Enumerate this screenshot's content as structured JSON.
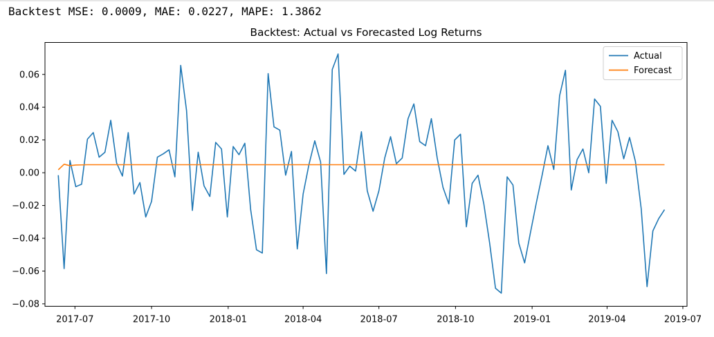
{
  "output": {
    "text": "Backtest MSE: 0.0009, MAE: 0.0227, MAPE: 1.3862"
  },
  "chart_data": {
    "type": "line",
    "title": "Backtest: Actual vs Forecasted Log Returns",
    "xlabel": "",
    "ylabel": "",
    "xlim": [
      "2017-05-26",
      "2019-07-06"
    ],
    "ylim": [
      -0.0815,
      0.0795
    ],
    "x_ticks": [
      "2017-07",
      "2017-10",
      "2018-01",
      "2018-04",
      "2018-07",
      "2018-10",
      "2019-01",
      "2019-04",
      "2019-07"
    ],
    "x_tick_dates": [
      "2017-07-01",
      "2017-10-01",
      "2018-01-01",
      "2018-04-01",
      "2018-07-01",
      "2018-10-01",
      "2019-01-01",
      "2019-04-01",
      "2019-07-01"
    ],
    "y_ticks": [
      -0.08,
      -0.06,
      -0.04,
      -0.02,
      0.0,
      0.02,
      0.04,
      0.06
    ],
    "y_tick_labels": [
      "−0.08",
      "−0.06",
      "−0.04",
      "−0.02",
      "0.00",
      "0.02",
      "0.04",
      "0.06"
    ],
    "legend_position": "top-right",
    "x": [
      "2017-06-11",
      "2017-06-18",
      "2017-06-25",
      "2017-07-02",
      "2017-07-09",
      "2017-07-16",
      "2017-07-23",
      "2017-07-30",
      "2017-08-06",
      "2017-08-13",
      "2017-08-20",
      "2017-08-27",
      "2017-09-03",
      "2017-09-10",
      "2017-09-17",
      "2017-09-24",
      "2017-10-01",
      "2017-10-08",
      "2017-10-15",
      "2017-10-22",
      "2017-10-29",
      "2017-11-05",
      "2017-11-12",
      "2017-11-19",
      "2017-11-26",
      "2017-12-03",
      "2017-12-10",
      "2017-12-17",
      "2017-12-24",
      "2017-12-31",
      "2018-01-07",
      "2018-01-14",
      "2018-01-21",
      "2018-01-28",
      "2018-02-04",
      "2018-02-11",
      "2018-02-18",
      "2018-02-25",
      "2018-03-04",
      "2018-03-11",
      "2018-03-18",
      "2018-03-25",
      "2018-04-01",
      "2018-04-08",
      "2018-04-15",
      "2018-04-22",
      "2018-04-29",
      "2018-05-06",
      "2018-05-13",
      "2018-05-20",
      "2018-05-27",
      "2018-06-03",
      "2018-06-10",
      "2018-06-17",
      "2018-06-24",
      "2018-07-01",
      "2018-07-08",
      "2018-07-15",
      "2018-07-22",
      "2018-07-29",
      "2018-08-05",
      "2018-08-12",
      "2018-08-19",
      "2018-08-26",
      "2018-09-02",
      "2018-09-09",
      "2018-09-16",
      "2018-09-23",
      "2018-09-30",
      "2018-10-07",
      "2018-10-14",
      "2018-10-21",
      "2018-10-28",
      "2018-11-04",
      "2018-11-11",
      "2018-11-18",
      "2018-11-25",
      "2018-12-02",
      "2018-12-09",
      "2018-12-16",
      "2018-12-23",
      "2018-12-30",
      "2019-01-06",
      "2019-01-13",
      "2019-01-20",
      "2019-01-27",
      "2019-02-03",
      "2019-02-10",
      "2019-02-17",
      "2019-02-24",
      "2019-03-03",
      "2019-03-10",
      "2019-03-17",
      "2019-03-24",
      "2019-03-31",
      "2019-04-07",
      "2019-04-14",
      "2019-04-21",
      "2019-04-28",
      "2019-05-05",
      "2019-05-12",
      "2019-05-19",
      "2019-05-26",
      "2019-06-02",
      "2019-06-09"
    ],
    "series": [
      {
        "name": "Actual",
        "color": "#1f77b4",
        "values": [
          -0.0015,
          -0.0585,
          0.0075,
          -0.0085,
          -0.007,
          0.0205,
          0.0245,
          0.0095,
          0.0125,
          0.032,
          0.006,
          -0.002,
          0.0245,
          -0.013,
          -0.006,
          -0.027,
          -0.0175,
          0.0095,
          0.0115,
          0.014,
          -0.0025,
          0.0655,
          0.038,
          -0.023,
          0.0125,
          -0.008,
          -0.0145,
          0.0185,
          0.0145,
          -0.027,
          0.016,
          0.011,
          0.018,
          -0.0225,
          -0.047,
          -0.049,
          0.0605,
          0.028,
          0.026,
          -0.0015,
          0.013,
          -0.0465,
          -0.013,
          0.005,
          0.0195,
          0.0065,
          -0.0615,
          0.063,
          0.0725,
          -0.001,
          0.004,
          0.001,
          0.025,
          -0.011,
          -0.0235,
          -0.011,
          0.009,
          0.022,
          0.0055,
          0.009,
          0.033,
          0.042,
          0.019,
          0.0165,
          0.033,
          0.009,
          -0.009,
          -0.019,
          0.02,
          0.0235,
          -0.033,
          -0.0065,
          -0.0015,
          -0.019,
          -0.043,
          -0.0705,
          -0.0735,
          -0.0025,
          -0.0075,
          -0.043,
          -0.055,
          -0.0365,
          -0.0185,
          -0.0015,
          0.0165,
          0.002,
          0.047,
          0.0625,
          -0.0105,
          0.008,
          0.0145,
          0.0,
          0.045,
          0.0405,
          -0.0065,
          0.032,
          0.025,
          0.0085,
          0.0215,
          0.007,
          -0.022,
          -0.0695,
          -0.0355,
          -0.028,
          -0.0225
        ]
      },
      {
        "name": "Forecast",
        "color": "#ff7f0e",
        "values": [
          0.0018,
          0.0052,
          0.0043,
          0.0047,
          0.0048,
          0.0049,
          0.0049,
          0.0049,
          0.0049,
          0.0049,
          0.0049,
          0.0049,
          0.0049,
          0.0049,
          0.0049,
          0.0049,
          0.0049,
          0.0049,
          0.0049,
          0.0049,
          0.0049,
          0.0049,
          0.0049,
          0.0049,
          0.0049,
          0.0049,
          0.0049,
          0.0049,
          0.0049,
          0.0049,
          0.0049,
          0.0049,
          0.0049,
          0.0049,
          0.0049,
          0.0049,
          0.0049,
          0.0049,
          0.0049,
          0.0049,
          0.0049,
          0.0049,
          0.0049,
          0.0049,
          0.0049,
          0.0049,
          0.0049,
          0.0049,
          0.0049,
          0.0049,
          0.0049,
          0.0049,
          0.0049,
          0.0049,
          0.0049,
          0.0049,
          0.0049,
          0.0049,
          0.0049,
          0.0049,
          0.0049,
          0.0049,
          0.0049,
          0.0049,
          0.0049,
          0.0049,
          0.0049,
          0.0049,
          0.0049,
          0.0049,
          0.0049,
          0.0049,
          0.0049,
          0.0049,
          0.0049,
          0.0049,
          0.0049,
          0.0049,
          0.0049,
          0.0049,
          0.0049,
          0.0049,
          0.0049,
          0.0049,
          0.0049,
          0.0049,
          0.0049,
          0.0049,
          0.0049,
          0.0049,
          0.0049,
          0.0049,
          0.0049,
          0.0049,
          0.0049,
          0.0049,
          0.0049,
          0.0049,
          0.0049,
          0.0049,
          0.0049,
          0.0049,
          0.0049,
          0.0049,
          0.0049
        ]
      }
    ]
  }
}
